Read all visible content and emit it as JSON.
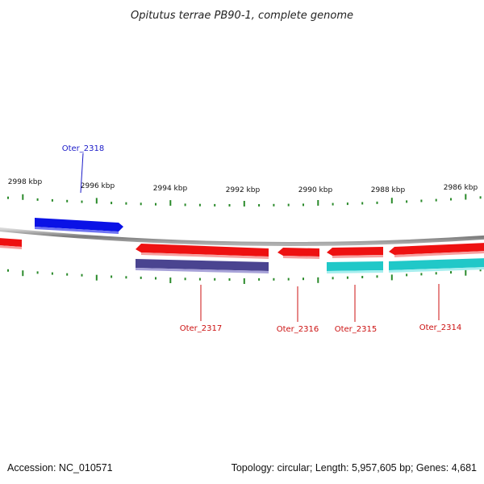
{
  "title": "Opitutus terrae PB90-1, complete genome",
  "colors": {
    "backbone": "#8a8a8a",
    "tick": "#2a8a2a",
    "forward_gene": "#0a12e6",
    "reverse_gene": "#ee1111",
    "cds_a": "#4a4490",
    "cds_b": "#20c8c8",
    "label_forward": "#1a1ac8",
    "label_reverse": "#cc1111"
  },
  "scale_labels": [
    "2998 kbp",
    "2996 kbp",
    "2994 kbp",
    "2992 kbp",
    "2990 kbp",
    "2988 kbp",
    "2986 kbp"
  ],
  "genes": [
    {
      "locus": "Oter_2318",
      "strand": "+"
    },
    {
      "locus": "Oter_2317",
      "strand": "-"
    },
    {
      "locus": "Oter_2316",
      "strand": "-"
    },
    {
      "locus": "Oter_2315",
      "strand": "-"
    },
    {
      "locus": "Oter_2314",
      "strand": "-"
    }
  ],
  "footer": {
    "accession": "Accession: NC_010571",
    "summary": "Topology: circular; Length: 5,957,605 bp; Genes: 4,681"
  }
}
